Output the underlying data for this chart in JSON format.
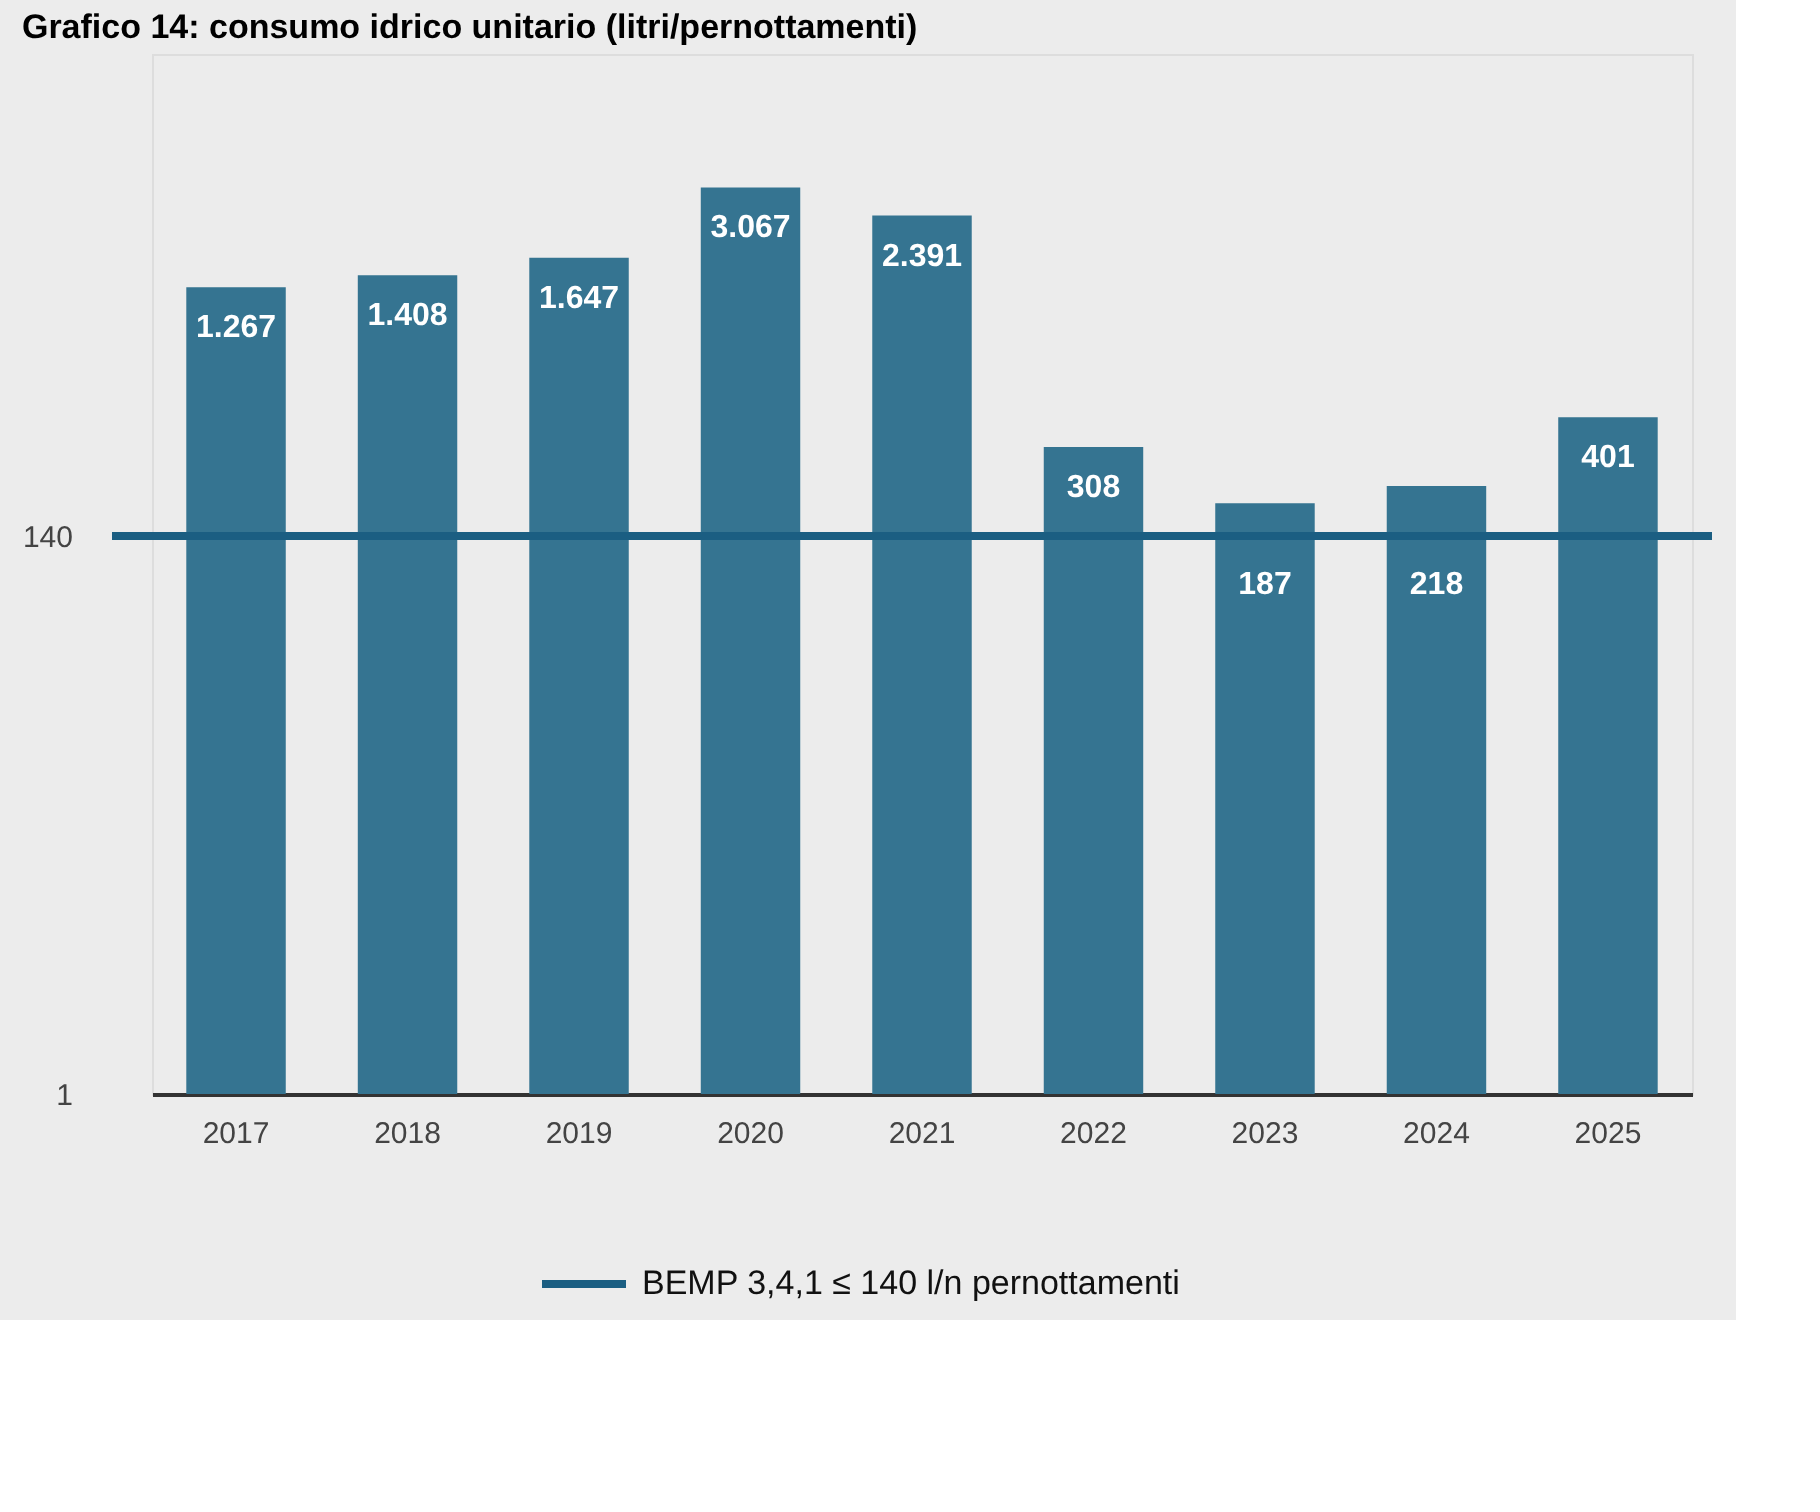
{
  "chart_data": {
    "type": "bar",
    "title": "Grafico 14: consumo idrico unitario (litri/pernottamenti)",
    "categories": [
      "2017",
      "2018",
      "2019",
      "2020",
      "2021",
      "2022",
      "2023",
      "2024",
      "2025"
    ],
    "values": [
      1267,
      1408,
      1647,
      3067,
      2391,
      308,
      187,
      218,
      401
    ],
    "value_labels": [
      "1.267",
      "1.408",
      "1.647",
      "3.067",
      "2.391",
      "308",
      "187",
      "218",
      "401"
    ],
    "color": "#357491",
    "log": true,
    "ylim": [
      1,
      10000
    ],
    "yticks": [
      1,
      140
    ],
    "ref_lines": [
      {
        "axis": "y",
        "value": 140,
        "label": "BEMP  3,4,1 ≤ 140 l/n pernottamenti",
        "color": "#1b5e82"
      }
    ],
    "legend": "bottom"
  }
}
